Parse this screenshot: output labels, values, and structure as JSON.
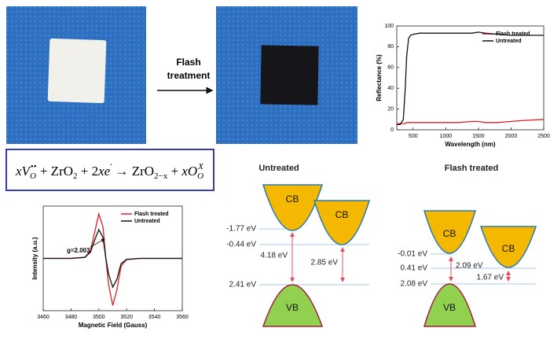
{
  "process_label": [
    "Flash",
    "treatment"
  ],
  "equation": [
    "x",
    "V",
    "O",
    "••",
    " + ZrO",
    "2",
    " + 2",
    "x",
    "e",
    "'",
    " → ZrO",
    "2−x",
    " + ",
    "x",
    "O",
    "O",
    "X"
  ],
  "band_diagrams": [
    {
      "title": "Untreated",
      "cb_labels": [
        "CB",
        "CB"
      ],
      "vb_label": "VB",
      "levels": [
        "-1.77 eV",
        "-0.44 eV",
        "2.41 eV"
      ],
      "gaps": [
        "4.18 eV",
        "2.85 eV"
      ]
    },
    {
      "title": "Flash treated",
      "cb_labels": [
        "CB",
        "CB"
      ],
      "vb_label": "VB",
      "levels": [
        "-0.01 eV",
        "0.41 eV",
        "2.08 eV"
      ],
      "gaps": [
        "2.09 eV",
        "1.67 eV"
      ]
    }
  ],
  "chart_data": [
    {
      "type": "line",
      "xlabel": "Wavelength (nm)",
      "ylabel": "Reflectance (%)",
      "x": [
        250,
        300,
        350,
        380,
        400,
        430,
        460,
        500,
        600,
        800,
        1000,
        1200,
        1400,
        1500,
        1600,
        1800,
        2000,
        2200,
        2500
      ],
      "series": [
        {
          "name": "Flash treated",
          "color": "#e02020",
          "values": [
            6,
            6,
            6,
            6,
            7,
            7,
            7,
            7,
            7,
            7,
            7,
            7,
            8,
            8,
            7,
            7,
            8,
            9,
            10
          ]
        },
        {
          "name": "Untreated",
          "color": "#111111",
          "values": [
            5,
            5,
            10,
            40,
            70,
            88,
            91,
            92,
            93,
            93,
            93,
            93,
            93,
            94,
            93,
            92,
            91,
            91,
            91
          ]
        }
      ],
      "xlim": [
        250,
        2500
      ],
      "xticks": [
        500,
        1000,
        1500,
        2000,
        2500
      ],
      "ylim": [
        0,
        100
      ],
      "yticks": [
        0,
        20,
        40,
        60,
        80,
        100
      ],
      "grid": false,
      "legend": "upper right"
    },
    {
      "type": "line",
      "xlabel": "Magnetic Field (Gauss)",
      "ylabel": "Intensity (a.u.)",
      "annotation": "g=2.003",
      "x": [
        3460,
        3480,
        3490,
        3494,
        3497,
        3500,
        3503,
        3505,
        3507,
        3510,
        3513,
        3516,
        3520,
        3530,
        3560
      ],
      "series": [
        {
          "name": "Flash treated",
          "color": "#e02020",
          "values": [
            0,
            0,
            0.02,
            0.15,
            0.5,
            0.85,
            0.6,
            0,
            -0.5,
            -0.9,
            -0.6,
            -0.15,
            -0.02,
            0,
            0
          ]
        },
        {
          "name": "Untreated",
          "color": "#111111",
          "values": [
            0,
            0,
            0.02,
            0.12,
            0.35,
            0.55,
            0.4,
            0,
            -0.3,
            -0.55,
            -0.4,
            -0.1,
            -0.02,
            0,
            0
          ]
        }
      ],
      "xlim": [
        3460,
        3560
      ],
      "xticks": [
        3460,
        3480,
        3500,
        3520,
        3540,
        3560
      ],
      "ylim": [
        -1,
        1
      ],
      "grid": false,
      "legend": "upper right"
    }
  ]
}
